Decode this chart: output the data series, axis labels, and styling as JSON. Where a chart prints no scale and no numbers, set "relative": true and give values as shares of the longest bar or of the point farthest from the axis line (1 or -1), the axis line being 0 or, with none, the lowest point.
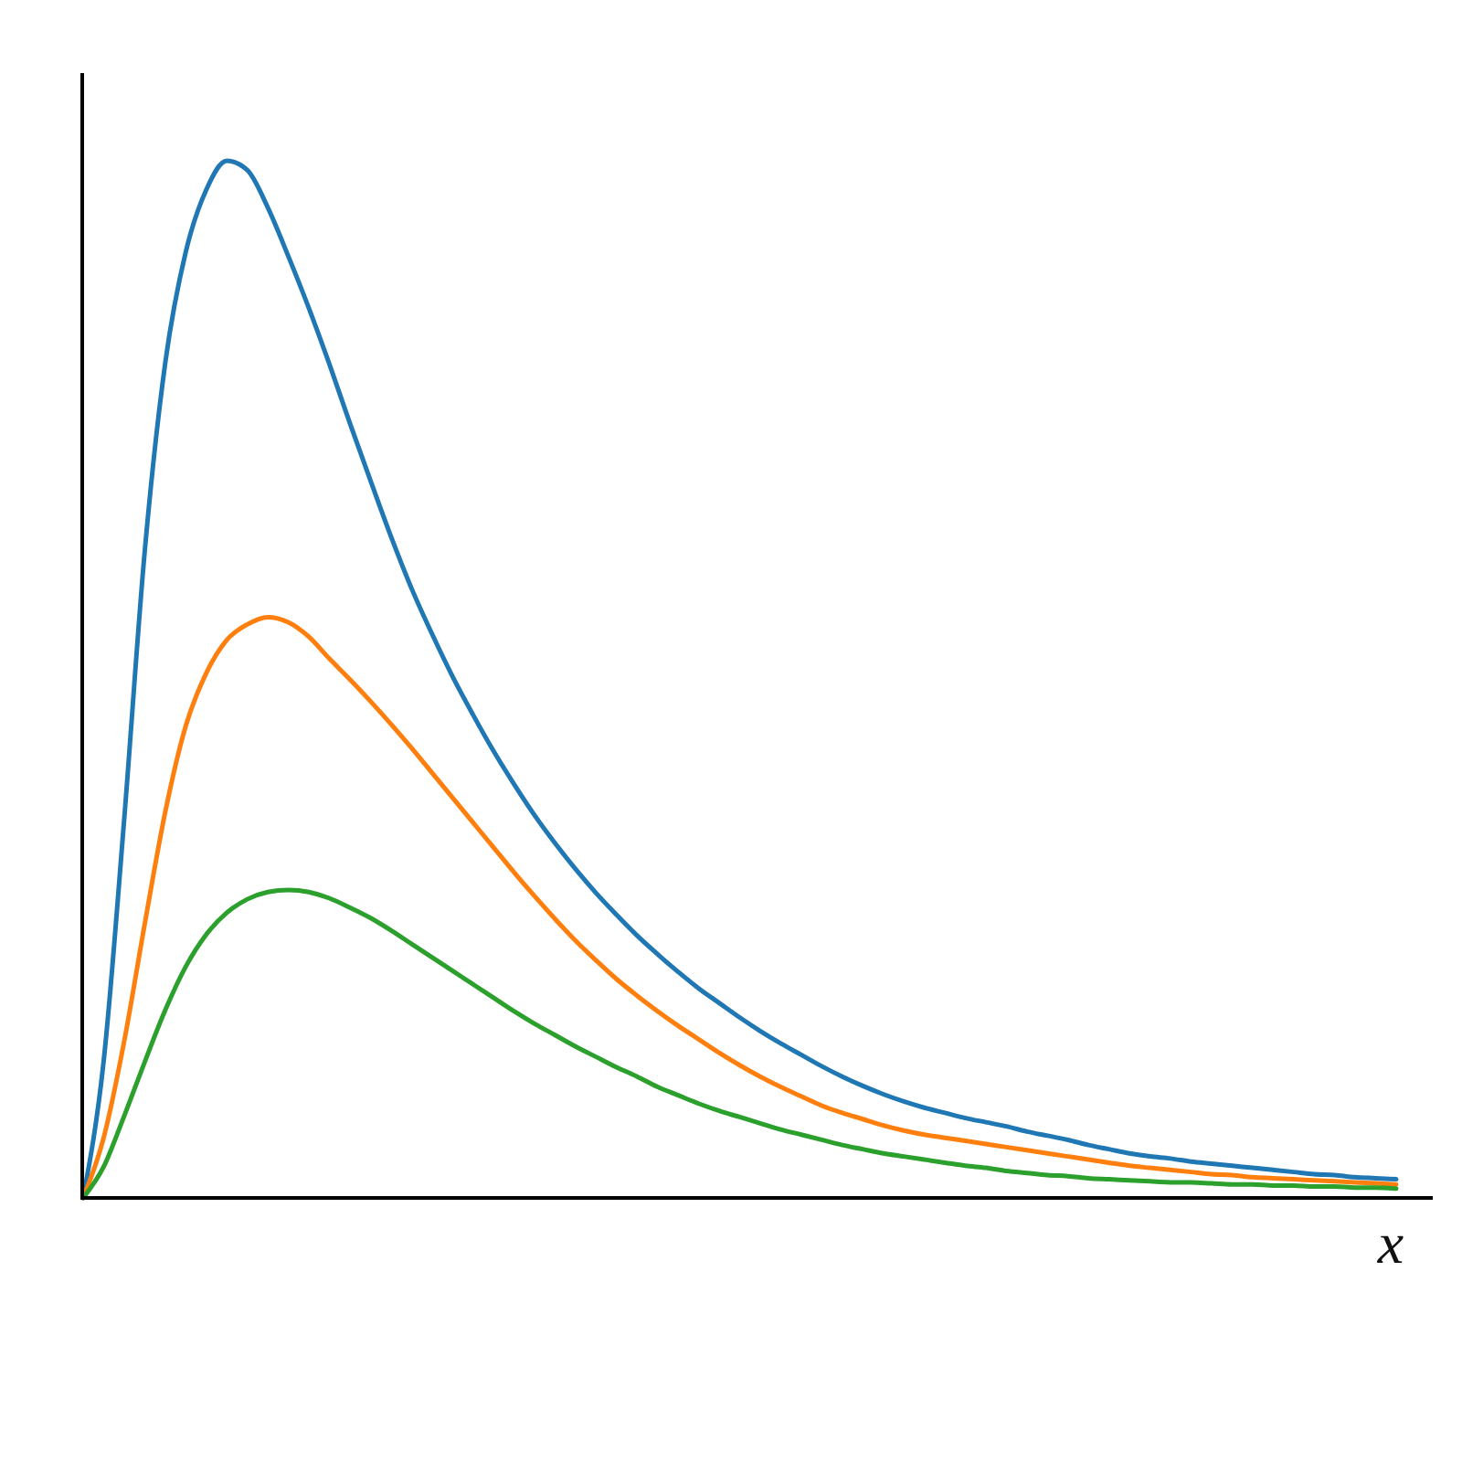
{
  "chart_data": {
    "type": "line",
    "relative": true,
    "xlabel": "x",
    "categories": [
      null,
      null,
      null,
      null,
      null,
      null,
      null,
      null,
      null,
      null,
      null,
      null,
      null,
      null,
      null,
      null,
      null,
      null,
      null,
      null,
      null,
      null,
      null,
      null,
      null,
      null,
      null,
      null,
      null,
      null,
      null,
      null,
      null,
      null,
      null,
      null,
      null,
      null,
      null,
      null,
      null,
      null,
      null,
      null,
      null,
      null,
      null,
      null,
      null,
      null,
      null,
      null,
      null,
      null,
      null,
      null,
      null,
      null,
      null,
      null,
      null,
      null,
      null,
      null,
      null
    ],
    "series": [
      {
        "color": "#1f77b4",
        "values": [
          0,
          0.132,
          0.365,
          0.623,
          0.805,
          0.912,
          0.972,
          1,
          0.991,
          0.955,
          0.908,
          0.858,
          0.804,
          0.747,
          0.692,
          0.638,
          0.588,
          0.544,
          0.503,
          0.466,
          0.431,
          0.399,
          0.369,
          0.342,
          0.317,
          0.294,
          0.273,
          0.253,
          0.235,
          0.218,
          0.202,
          0.188,
          0.174,
          0.161,
          0.149,
          0.138,
          0.127,
          0.117,
          0.108,
          0.1,
          0.093,
          0.087,
          0.082,
          0.077,
          0.073,
          0.069,
          0.064,
          0.06,
          0.056,
          0.051,
          0.047,
          0.043,
          0.04,
          0.038,
          0.035,
          0.033,
          0.031,
          0.029,
          0.027,
          0.025,
          0.023,
          0.022,
          0.02,
          0.019,
          0.018
        ]
      },
      {
        "color": "#ff7f0e",
        "values": [
          0,
          0.058,
          0.151,
          0.264,
          0.372,
          0.455,
          0.506,
          0.538,
          0.553,
          0.56,
          0.555,
          0.541,
          0.52,
          0.5,
          0.479,
          0.457,
          0.434,
          0.41,
          0.386,
          0.362,
          0.338,
          0.314,
          0.291,
          0.269,
          0.248,
          0.229,
          0.211,
          0.195,
          0.18,
          0.166,
          0.153,
          0.14,
          0.128,
          0.117,
          0.107,
          0.098,
          0.089,
          0.082,
          0.076,
          0.07,
          0.065,
          0.061,
          0.058,
          0.055,
          0.052,
          0.049,
          0.046,
          0.043,
          0.04,
          0.037,
          0.034,
          0.031,
          0.029,
          0.027,
          0.025,
          0.023,
          0.022,
          0.02,
          0.019,
          0.018,
          0.017,
          0.016,
          0.015,
          0.014,
          0.013
        ]
      },
      {
        "color": "#2ca02c",
        "values": [
          0,
          0.03,
          0.079,
          0.131,
          0.181,
          0.223,
          0.254,
          0.275,
          0.288,
          0.295,
          0.297,
          0.295,
          0.289,
          0.28,
          0.27,
          0.258,
          0.245,
          0.232,
          0.219,
          0.206,
          0.193,
          0.18,
          0.168,
          0.157,
          0.146,
          0.136,
          0.126,
          0.117,
          0.107,
          0.099,
          0.091,
          0.084,
          0.078,
          0.072,
          0.066,
          0.061,
          0.056,
          0.051,
          0.047,
          0.043,
          0.04,
          0.037,
          0.034,
          0.031,
          0.029,
          0.026,
          0.024,
          0.022,
          0.021,
          0.019,
          0.018,
          0.017,
          0.016,
          0.015,
          0.015,
          0.014,
          0.013,
          0.013,
          0.012,
          0.012,
          0.011,
          0.011,
          0.01,
          0.01,
          0.009
        ]
      }
    ]
  }
}
